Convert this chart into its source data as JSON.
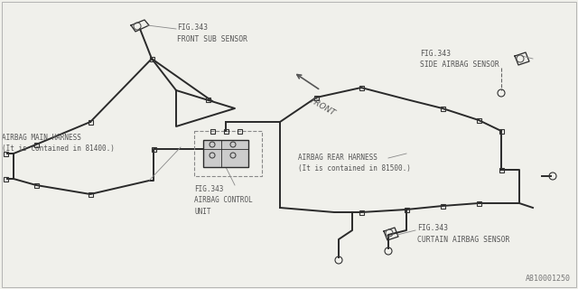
{
  "bg_color": "#f0f0eb",
  "line_color": "#2a2a2a",
  "text_color": "#555555",
  "part_id": "A810001250",
  "labels": {
    "front_sub_sensor": "FIG.343\nFRONT SUB SENSOR",
    "side_airbag_sensor": "FIG.343\nSIDE AIRBAG SENSOR",
    "airbag_main_harness": "AIRBAG MAIN HARNESS\n(It is contained in 81400.)",
    "airbag_control_unit": "FIG.343\nAIRBAG CONTROL\nUNIT",
    "airbag_rear_harness": "AIRBAG REAR HARNESS\n(It is contained in 81500.)",
    "curtain_airbag_sensor": "FIG.343\nCURTAIN AIRBAG SENSOR",
    "front_label": "FRONT"
  }
}
